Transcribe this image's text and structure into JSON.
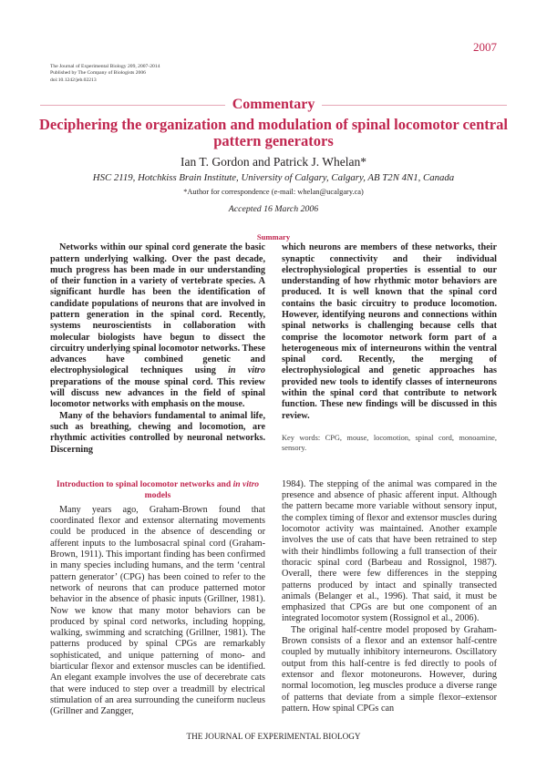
{
  "page_number": "2007",
  "journal_info": [
    "The Journal of Experimental Biology 209, 2007-2014",
    "Published by The Company of Biologists 2006",
    "doi:10.1242/jeb.02213"
  ],
  "section": "Commentary",
  "title": "Deciphering the organization and modulation of spinal locomotor central pattern generators",
  "authors": "Ian T. Gordon and Patrick J. Whelan*",
  "affiliation": "HSC 2119, Hotchkiss Brain Institute, University of Calgary, Calgary, AB T2N 4N1, Canada",
  "correspondence": "*Author for correspondence (e-mail: whelan@ucalgary.ca)",
  "accepted": "Accepted 16 March 2006",
  "summary": {
    "heading": "Summary",
    "left": {
      "p1_a": "Networks within our spinal cord generate the basic pattern underlying walking. Over the past decade, much progress has been made in our understanding of their function in a variety of vertebrate species. A significant hurdle has been the identification of candidate populations of neurons that are involved in pattern generation in the spinal cord. Recently, systems neuroscientists in collaboration with molecular biologists have begun to dissect the circuitry underlying spinal locomotor networks. These advances have combined genetic and electrophysiological techniques using ",
      "p1_italic": "in vitro",
      "p1_b": " preparations of the mouse spinal cord. This review will discuss new advances in the field of spinal locomotor networks with emphasis on the mouse.",
      "p2": "Many of the behaviors fundamental to animal life, such as breathing, chewing and locomotion, are rhythmic activities controlled by neuronal networks. Discerning"
    },
    "right": "which neurons are members of these networks, their synaptic connectivity and their individual electrophysiological properties is essential to our understanding of how rhythmic motor behaviors are produced. It is well known that the spinal cord contains the basic circuitry to produce locomotion. However, identifying neurons and connections within spinal networks is challenging because cells that comprise the locomotor network form part of a heterogeneous mix of interneurons within the ventral spinal cord. Recently, the merging of electrophysiological and genetic approaches has provided new tools to identify classes of interneurons within the spinal cord that contribute to network function. These new findings will be discussed in this review."
  },
  "keywords": "Key words: CPG, mouse, locomotion, spinal cord, monoamine, sensory.",
  "intro": {
    "heading_a": "Introduction to spinal locomotor networks and ",
    "heading_italic": "in vitro",
    "heading_b": " models",
    "left": "Many years ago, Graham-Brown found that coordinated flexor and extensor alternating movements could be produced in the absence of descending or afferent inputs to the lumbosacral spinal cord (Graham-Brown, 1911). This important finding has been confirmed in many species including humans, and the term ‘central pattern generator’ (CPG) has been coined to refer to the network of neurons that can produce patterned motor behavior in the absence of phasic inputs (Grillner, 1981). Now we know that many motor behaviors can be produced by spinal cord networks, including hopping, walking, swimming and scratching (Grillner, 1981). The patterns produced by spinal CPGs are remarkably sophisticated, and unique patterning of mono- and biarticular flexor and extensor muscles can be identified. An elegant example involves the use of decerebrate cats that were induced to step over a treadmill by electrical stimulation of an area surrounding the cuneiform nucleus (Grillner and Zangger,",
    "right_p1": "1984). The stepping of the animal was compared in the presence and absence of phasic afferent input. Although the pattern became more variable without sensory input, the complex timing of flexor and extensor muscles during locomotor activity was maintained. Another example involves the use of cats that have been retrained to step with their hindlimbs following a full transection of their thoracic spinal cord (Barbeau and Rossignol, 1987). Overall, there were few differences in the stepping patterns produced by intact and spinally transected animals (Belanger et al., 1996). That said, it must be emphasized that CPGs are but one component of an integrated locomotor system (Rossignol et al., 2006).",
    "right_p2": "The original half-centre model proposed by Graham-Brown consists of a flexor and an extensor half-centre coupled by mutually inhibitory interneurons. Oscillatory output from this half-centre is fed directly to pools of extensor and flexor motoneurons. However, during normal locomotion, leg muscles produce a diverse range of patterns that deviate from a simple flexor–extensor pattern. How spinal CPGs can"
  },
  "footer": "THE JOURNAL OF EXPERIMENTAL BIOLOGY",
  "colors": {
    "accent": "#c0264f",
    "text": "#231f20"
  }
}
